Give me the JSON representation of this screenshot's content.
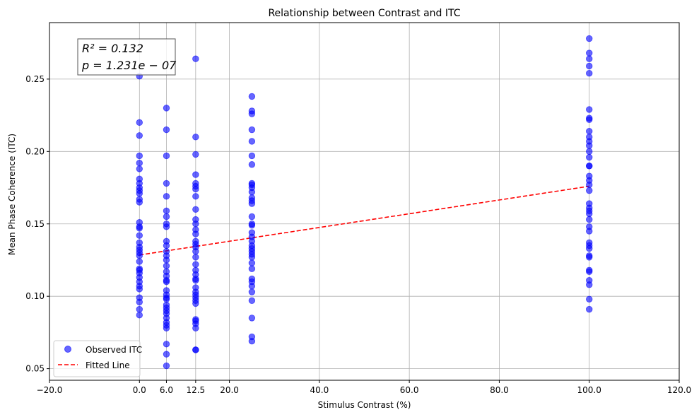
{
  "chart_data": {
    "type": "scatter",
    "title": "Relationship between Contrast and ITC",
    "xlabel": "Stimulus Contrast (%)",
    "ylabel": "Mean Phase Coherence (ITC)",
    "xlim": [
      -20,
      120
    ],
    "ylim": [
      0.042,
      0.289
    ],
    "xticks": [
      -20,
      0,
      6,
      12.5,
      20,
      40,
      60,
      80,
      100,
      120
    ],
    "xtick_labels": [
      "−20.0",
      "0.0",
      "6.0",
      "12.5",
      "20.0",
      "40.0",
      "60.0",
      "80.0",
      "100.0",
      "120.0"
    ],
    "yticks": [
      0.05,
      0.1,
      0.15,
      0.2,
      0.25
    ],
    "ytick_labels": [
      "0.05",
      "0.10",
      "0.15",
      "0.20",
      "0.25"
    ],
    "grid": true,
    "legend_position": "lower-left",
    "annotation": {
      "line1": "R² = 0.132",
      "line2": "p = 1.231e − 07"
    },
    "series": [
      {
        "name": "Observed ITC",
        "kind": "scatter",
        "color": "#0000ff",
        "points": [
          [
            0,
            0.252
          ],
          [
            0,
            0.22
          ],
          [
            0,
            0.211
          ],
          [
            0,
            0.197
          ],
          [
            0,
            0.192
          ],
          [
            0,
            0.188
          ],
          [
            0,
            0.181
          ],
          [
            0,
            0.178
          ],
          [
            0,
            0.175
          ],
          [
            0,
            0.173
          ],
          [
            0,
            0.171
          ],
          [
            0,
            0.167
          ],
          [
            0,
            0.165
          ],
          [
            0,
            0.151
          ],
          [
            0,
            0.148
          ],
          [
            0,
            0.147
          ],
          [
            0,
            0.142
          ],
          [
            0,
            0.137
          ],
          [
            0,
            0.134
          ],
          [
            0,
            0.132
          ],
          [
            0,
            0.13
          ],
          [
            0,
            0.128
          ],
          [
            0,
            0.124
          ],
          [
            0,
            0.119
          ],
          [
            0,
            0.118
          ],
          [
            0,
            0.116
          ],
          [
            0,
            0.113
          ],
          [
            0,
            0.11
          ],
          [
            0,
            0.107
          ],
          [
            0,
            0.105
          ],
          [
            0,
            0.099
          ],
          [
            0,
            0.096
          ],
          [
            0,
            0.091
          ],
          [
            0,
            0.087
          ],
          [
            6,
            0.23
          ],
          [
            6,
            0.215
          ],
          [
            6,
            0.197
          ],
          [
            6,
            0.178
          ],
          [
            6,
            0.169
          ],
          [
            6,
            0.159
          ],
          [
            6,
            0.155
          ],
          [
            6,
            0.15
          ],
          [
            6,
            0.148
          ],
          [
            6,
            0.138
          ],
          [
            6,
            0.135
          ],
          [
            6,
            0.131
          ],
          [
            6,
            0.128
          ],
          [
            6,
            0.125
          ],
          [
            6,
            0.121
          ],
          [
            6,
            0.117
          ],
          [
            6,
            0.114
          ],
          [
            6,
            0.111
          ],
          [
            6,
            0.11
          ],
          [
            6,
            0.104
          ],
          [
            6,
            0.101
          ],
          [
            6,
            0.099
          ],
          [
            6,
            0.098
          ],
          [
            6,
            0.094
          ],
          [
            6,
            0.092
          ],
          [
            6,
            0.09
          ],
          [
            6,
            0.088
          ],
          [
            6,
            0.085
          ],
          [
            6,
            0.082
          ],
          [
            6,
            0.08
          ],
          [
            6,
            0.078
          ],
          [
            6,
            0.067
          ],
          [
            6,
            0.06
          ],
          [
            6,
            0.052
          ],
          [
            12.5,
            0.264
          ],
          [
            12.5,
            0.21
          ],
          [
            12.5,
            0.198
          ],
          [
            12.5,
            0.184
          ],
          [
            12.5,
            0.178
          ],
          [
            12.5,
            0.176
          ],
          [
            12.5,
            0.174
          ],
          [
            12.5,
            0.169
          ],
          [
            12.5,
            0.16
          ],
          [
            12.5,
            0.153
          ],
          [
            12.5,
            0.15
          ],
          [
            12.5,
            0.146
          ],
          [
            12.5,
            0.143
          ],
          [
            12.5,
            0.138
          ],
          [
            12.5,
            0.136
          ],
          [
            12.5,
            0.134
          ],
          [
            12.5,
            0.131
          ],
          [
            12.5,
            0.127
          ],
          [
            12.5,
            0.122
          ],
          [
            12.5,
            0.118
          ],
          [
            12.5,
            0.115
          ],
          [
            12.5,
            0.112
          ],
          [
            12.5,
            0.111
          ],
          [
            12.5,
            0.106
          ],
          [
            12.5,
            0.103
          ],
          [
            12.5,
            0.101
          ],
          [
            12.5,
            0.099
          ],
          [
            12.5,
            0.097
          ],
          [
            12.5,
            0.095
          ],
          [
            12.5,
            0.084
          ],
          [
            12.5,
            0.083
          ],
          [
            12.5,
            0.081
          ],
          [
            12.5,
            0.078
          ],
          [
            12.5,
            0.063
          ],
          [
            12.5,
            0.063
          ],
          [
            25,
            0.238
          ],
          [
            25,
            0.228
          ],
          [
            25,
            0.226
          ],
          [
            25,
            0.215
          ],
          [
            25,
            0.207
          ],
          [
            25,
            0.197
          ],
          [
            25,
            0.191
          ],
          [
            25,
            0.178
          ],
          [
            25,
            0.177
          ],
          [
            25,
            0.175
          ],
          [
            25,
            0.172
          ],
          [
            25,
            0.168
          ],
          [
            25,
            0.166
          ],
          [
            25,
            0.164
          ],
          [
            25,
            0.155
          ],
          [
            25,
            0.15
          ],
          [
            25,
            0.149
          ],
          [
            25,
            0.144
          ],
          [
            25,
            0.141
          ],
          [
            25,
            0.138
          ],
          [
            25,
            0.135
          ],
          [
            25,
            0.133
          ],
          [
            25,
            0.131
          ],
          [
            25,
            0.129
          ],
          [
            25,
            0.127
          ],
          [
            25,
            0.123
          ],
          [
            25,
            0.119
          ],
          [
            25,
            0.112
          ],
          [
            25,
            0.11
          ],
          [
            25,
            0.107
          ],
          [
            25,
            0.103
          ],
          [
            25,
            0.097
          ],
          [
            25,
            0.085
          ],
          [
            25,
            0.072
          ],
          [
            25,
            0.069
          ],
          [
            100,
            0.278
          ],
          [
            100,
            0.268
          ],
          [
            100,
            0.264
          ],
          [
            100,
            0.259
          ],
          [
            100,
            0.254
          ],
          [
            100,
            0.229
          ],
          [
            100,
            0.223
          ],
          [
            100,
            0.222
          ],
          [
            100,
            0.214
          ],
          [
            100,
            0.21
          ],
          [
            100,
            0.207
          ],
          [
            100,
            0.204
          ],
          [
            100,
            0.2
          ],
          [
            100,
            0.196
          ],
          [
            100,
            0.19
          ],
          [
            100,
            0.19
          ],
          [
            100,
            0.183
          ],
          [
            100,
            0.18
          ],
          [
            100,
            0.177
          ],
          [
            100,
            0.173
          ],
          [
            100,
            0.164
          ],
          [
            100,
            0.161
          ],
          [
            100,
            0.159
          ],
          [
            100,
            0.157
          ],
          [
            100,
            0.153
          ],
          [
            100,
            0.148
          ],
          [
            100,
            0.145
          ],
          [
            100,
            0.137
          ],
          [
            100,
            0.135
          ],
          [
            100,
            0.133
          ],
          [
            100,
            0.128
          ],
          [
            100,
            0.127
          ],
          [
            100,
            0.118
          ],
          [
            100,
            0.117
          ],
          [
            100,
            0.111
          ],
          [
            100,
            0.108
          ],
          [
            100,
            0.098
          ],
          [
            100,
            0.091
          ]
        ]
      },
      {
        "name": "Fitted Line",
        "kind": "line",
        "style": "dashed",
        "color": "#ff0000",
        "points": [
          [
            0,
            0.1285
          ],
          [
            100,
            0.176
          ]
        ]
      }
    ]
  }
}
